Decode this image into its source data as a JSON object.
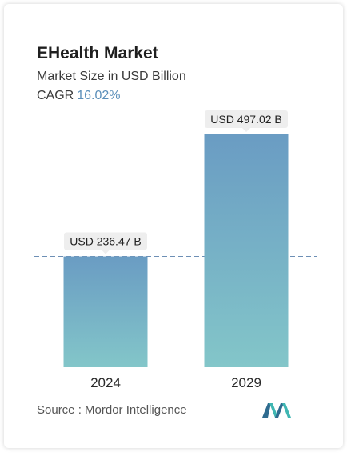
{
  "header": {
    "title": "EHealth Market",
    "subtitle": "Market Size in USD Billion",
    "cagr_label": "CAGR",
    "cagr_value": "16.02%"
  },
  "chart_data": {
    "type": "bar",
    "categories": [
      "2024",
      "2029"
    ],
    "values": [
      236.47,
      497.02
    ],
    "value_labels": [
      "USD 236.47 B",
      "USD 497.02 B"
    ],
    "title": "EHealth Market",
    "subtitle": "Market Size in USD Billion",
    "xlabel": "",
    "ylabel": "",
    "ylim": [
      0,
      497.02
    ],
    "grid": false,
    "reference_line": "dashed line at 2024 value",
    "colors": {
      "bar_top": "#6a9cc3",
      "bar_bottom": "#83c6c9",
      "dash": "#6d8fb5",
      "label_bg": "#eeeeee"
    }
  },
  "footer": {
    "source": "Source :  Mordor Intelligence",
    "logo_icon": "mordor-intelligence-logo"
  }
}
